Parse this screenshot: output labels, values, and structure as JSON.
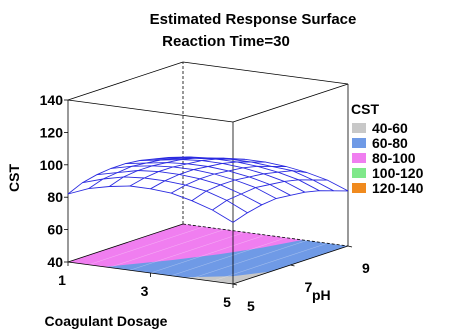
{
  "chart_data": {
    "type": "surface",
    "title": "Estimated Response Surface",
    "subtitle": "Reaction Time=30",
    "xlabel": "Coagulant Dosage",
    "ylabel": "pH",
    "zlabel": "CST",
    "x_ticks": [
      "1",
      "3",
      "5"
    ],
    "y_ticks": [
      "5",
      "7",
      "9"
    ],
    "z_ticks": [
      "40",
      "60",
      "80",
      "100",
      "120",
      "140"
    ],
    "xlim": [
      1,
      5
    ],
    "ylim": [
      5,
      9
    ],
    "zlim": [
      40,
      140
    ],
    "legend": {
      "title": "CST",
      "position": "right",
      "entries": [
        {
          "label": "40-60",
          "color": "#c8c8c8"
        },
        {
          "label": "60-80",
          "color": "#6f9ae6"
        },
        {
          "label": "80-100",
          "color": "#f07ef0"
        },
        {
          "label": "100-120",
          "color": "#7fe88a"
        },
        {
          "label": "120-140",
          "color": "#f08a1e"
        }
      ]
    },
    "surface": {
      "x": [
        1,
        1.5,
        2,
        2.5,
        3,
        3.5,
        4,
        4.5,
        5
      ],
      "y": [
        5,
        5.5,
        6,
        6.5,
        7,
        7.5,
        8,
        8.5,
        9
      ],
      "z": [
        [
          82,
          86,
          88,
          89,
          89,
          88,
          86,
          84,
          81
        ],
        [
          87,
          90,
          91,
          92,
          91,
          90,
          88,
          86,
          82
        ],
        [
          90,
          93,
          94,
          94,
          93,
          92,
          90,
          87,
          84
        ],
        [
          92,
          94,
          95,
          95,
          94,
          93,
          91,
          88,
          85
        ],
        [
          92,
          94,
          95,
          95,
          94,
          93,
          91,
          88,
          85
        ],
        [
          91,
          93,
          94,
          94,
          93,
          92,
          90,
          87,
          84
        ],
        [
          88,
          91,
          92,
          92,
          91,
          90,
          88,
          86,
          82
        ],
        [
          84,
          87,
          88,
          89,
          88,
          87,
          85,
          82,
          79
        ],
        [
          78,
          81,
          83,
          84,
          83,
          82,
          80,
          77,
          74
        ]
      ],
      "wire_color": "#2a2ae0"
    }
  }
}
